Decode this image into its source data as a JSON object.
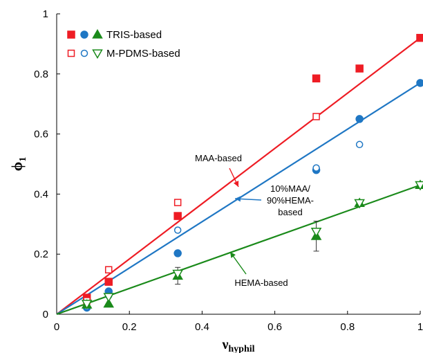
{
  "chart_data": {
    "type": "scatter",
    "xlabel": "ν",
    "xlabel_sub": "hyphil",
    "ylabel": "ϕ",
    "ylabel_sub": "1",
    "xlim": [
      0,
      1
    ],
    "ylim": [
      0,
      1
    ],
    "xticks": [
      "0",
      "0.2",
      "0.4",
      "0.6",
      "0.8",
      "1"
    ],
    "yticks": [
      "0",
      "0.2",
      "0.4",
      "0.6",
      "0.8",
      "1"
    ],
    "grid": false,
    "legend_position": "top-left",
    "legend": [
      {
        "label": "TRIS-based",
        "fill": "filled"
      },
      {
        "label": "M-PDMS-based",
        "fill": "open"
      }
    ],
    "colors": {
      "maa": "#ee1c24",
      "mix": "#1f77c4",
      "hema": "#1a8a1a"
    },
    "fit_lines": [
      {
        "name": "MAA-based",
        "x": [
          0,
          1
        ],
        "y": [
          0,
          0.92
        ],
        "color": "#ee1c24"
      },
      {
        "name": "10%MAA/90%HEMA-based",
        "x": [
          0,
          1
        ],
        "y": [
          0,
          0.77
        ],
        "color": "#1f77c4"
      },
      {
        "name": "HEMA-based",
        "x": [
          0,
          1
        ],
        "y": [
          0,
          0.43
        ],
        "color": "#1a8a1a"
      }
    ],
    "series": [
      {
        "group": "MAA",
        "base": "TRIS",
        "marker": "square",
        "fill": "filled",
        "color": "#ee1c24",
        "x": [
          0.083,
          0.143,
          0.333,
          0.714,
          0.833,
          1.0
        ],
        "y": [
          0.055,
          0.108,
          0.327,
          0.785,
          0.818,
          0.92
        ]
      },
      {
        "group": "MAA",
        "base": "M-PDMS",
        "marker": "square",
        "fill": "open",
        "color": "#ee1c24",
        "x": [
          0.083,
          0.143,
          0.333,
          0.714
        ],
        "y": [
          0.045,
          0.148,
          0.372,
          0.658
        ]
      },
      {
        "group": "10%MAA/90%HEMA",
        "base": "TRIS",
        "marker": "circle",
        "fill": "filled",
        "color": "#1f77c4",
        "x": [
          0.083,
          0.143,
          0.333,
          0.714,
          0.833,
          1.0
        ],
        "y": [
          0.022,
          0.076,
          0.203,
          0.48,
          0.65,
          0.77
        ]
      },
      {
        "group": "10%MAA/90%HEMA",
        "base": "M-PDMS",
        "marker": "circle",
        "fill": "open",
        "color": "#1f77c4",
        "x": [
          0.083,
          0.143,
          0.333,
          0.714,
          0.833
        ],
        "y": [
          0.026,
          0.062,
          0.28,
          0.487,
          0.565
        ]
      },
      {
        "group": "HEMA",
        "base": "TRIS",
        "marker": "triangle-up",
        "fill": "filled",
        "color": "#1a8a1a",
        "x": [
          0.083,
          0.143,
          0.333,
          0.714,
          0.833,
          1.0
        ],
        "y": [
          0.032,
          0.035,
          0.128,
          0.26,
          0.37,
          0.43
        ],
        "yerr": [
          0,
          0,
          0.028,
          0.05,
          0.008,
          0
        ]
      },
      {
        "group": "HEMA",
        "base": "M-PDMS",
        "marker": "triangle-down",
        "fill": "open",
        "color": "#1a8a1a",
        "x": [
          0.083,
          0.143,
          0.333,
          0.714,
          0.833,
          1.0
        ],
        "y": [
          0.035,
          0.058,
          0.135,
          0.275,
          0.37,
          0.43
        ]
      }
    ],
    "annotations": [
      {
        "id": "maa",
        "lines": [
          "MAA-based"
        ]
      },
      {
        "id": "mix",
        "lines": [
          "10%MAA/",
          "90%HEMA-",
          "based"
        ]
      },
      {
        "id": "hema",
        "lines": [
          "HEMA-based"
        ]
      }
    ]
  }
}
